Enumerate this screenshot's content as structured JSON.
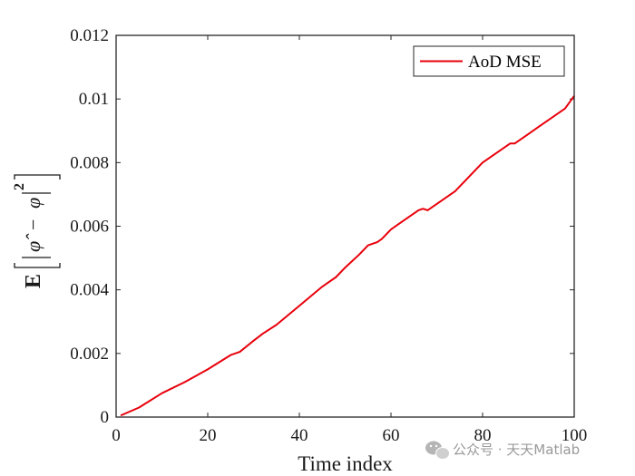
{
  "chart_data": {
    "type": "line",
    "xlabel": "Time index",
    "ylabel": {
      "expectation": "E",
      "phi_hat": "φ̂",
      "minus": "−",
      "phi": "φ",
      "exponent": "2"
    },
    "xlim": [
      0,
      100
    ],
    "ylim": [
      0,
      0.012
    ],
    "x_ticks": [
      "0",
      "20",
      "40",
      "60",
      "80",
      "100"
    ],
    "y_ticks": [
      "0",
      "0.002",
      "0.004",
      "0.006",
      "0.008",
      "0.01",
      "0.012"
    ],
    "grid": false,
    "legend_position": "top-right",
    "series": [
      {
        "name": "AoD MSE",
        "color": "#e8000b",
        "x": [
          1,
          5,
          10,
          15,
          20,
          25,
          27,
          30,
          32,
          35,
          40,
          45,
          48,
          50,
          53,
          55,
          57,
          58,
          60,
          62,
          64,
          66,
          67,
          68,
          70,
          72,
          74,
          76,
          78,
          80,
          82,
          84,
          86,
          87,
          88,
          90,
          92,
          94,
          96,
          98,
          100
        ],
        "values": [
          5e-05,
          0.0003,
          0.00075,
          0.0011,
          0.0015,
          0.00195,
          0.00205,
          0.0024,
          0.00262,
          0.0029,
          0.0035,
          0.0041,
          0.0044,
          0.0047,
          0.0051,
          0.0054,
          0.0055,
          0.0056,
          0.0059,
          0.0061,
          0.0063,
          0.0065,
          0.00655,
          0.0065,
          0.0067,
          0.0069,
          0.0071,
          0.0074,
          0.0077,
          0.008,
          0.0082,
          0.0084,
          0.0086,
          0.0086,
          0.0087,
          0.0089,
          0.0091,
          0.0093,
          0.0095,
          0.0097,
          0.0101
        ]
      }
    ]
  },
  "watermark": {
    "text": "公众号 · 天天Matlab",
    "icon": "wechat-icon"
  }
}
